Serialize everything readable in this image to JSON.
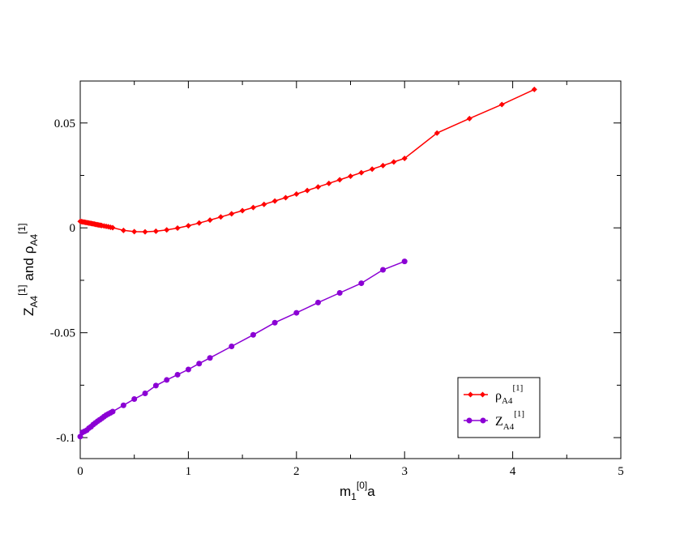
{
  "chart_data": {
    "type": "line",
    "xlabel": {
      "base": "m",
      "sub": "1",
      "sup": "[0]",
      "suffix": "a"
    },
    "ylabel": {
      "part1": {
        "base": "Z",
        "sub": "A4",
        "sup": "[1]"
      },
      "joiner": "and",
      "part2": {
        "base": "ρ",
        "sub": "A4",
        "sup": "[1]"
      }
    },
    "xlim": [
      0,
      5
    ],
    "ylim": [
      -0.11,
      0.07
    ],
    "xticks": [
      0,
      1,
      2,
      3,
      4,
      5
    ],
    "xtick_labels": [
      "0",
      "1",
      "2",
      "3",
      "4",
      "5"
    ],
    "yticks": [
      -0.1,
      -0.05,
      0,
      0.05
    ],
    "ytick_labels": [
      "-0.1",
      "-0.05",
      "0",
      "0.05"
    ],
    "grid": false,
    "legend_position": "bottom-right",
    "series": [
      {
        "legend": {
          "base": "ρ",
          "sub": "A4",
          "sup": "[1]"
        },
        "color": "#ff0000",
        "marker": "diamond",
        "x": [
          0.0,
          0.01,
          0.02,
          0.03,
          0.04,
          0.05,
          0.06,
          0.07,
          0.08,
          0.09,
          0.1,
          0.11,
          0.12,
          0.13,
          0.14,
          0.15,
          0.16,
          0.17,
          0.18,
          0.19,
          0.2,
          0.22,
          0.24,
          0.26,
          0.28,
          0.3,
          0.4,
          0.5,
          0.6,
          0.7,
          0.8,
          0.9,
          1.0,
          1.1,
          1.2,
          1.3,
          1.4,
          1.5,
          1.6,
          1.7,
          1.8,
          1.9,
          2.0,
          2.1,
          2.2,
          2.3,
          2.4,
          2.5,
          2.6,
          2.7,
          2.8,
          2.9,
          3.0,
          3.3,
          3.6,
          3.9,
          4.2
        ],
        "y": [
          0.0031,
          0.003,
          0.0029,
          0.0028,
          0.0027,
          0.0026,
          0.0025,
          0.0024,
          0.0023,
          0.0022,
          0.0021,
          0.002,
          0.0019,
          0.0018,
          0.0017,
          0.0016,
          0.0015,
          0.0014,
          0.0013,
          0.0012,
          0.0011,
          0.0009,
          0.0007,
          0.0005,
          0.0003,
          0.0001,
          -0.0012,
          -0.0018,
          -0.0019,
          -0.0016,
          -0.001,
          -0.0001,
          0.001,
          0.0023,
          0.0037,
          0.0052,
          0.0067,
          0.0082,
          0.0097,
          0.0112,
          0.0128,
          0.0144,
          0.0161,
          0.0178,
          0.0195,
          0.0212,
          0.0229,
          0.0246,
          0.0263,
          0.028,
          0.0297,
          0.0314,
          0.0331,
          0.0452,
          0.0521,
          0.0588,
          0.066
        ]
      },
      {
        "legend": {
          "base": "Z",
          "sub": "A4",
          "sup": "[1]"
        },
        "color": "#8b00d4",
        "marker": "circle",
        "x": [
          0.0,
          0.02,
          0.04,
          0.06,
          0.08,
          0.1,
          0.12,
          0.14,
          0.16,
          0.18,
          0.2,
          0.22,
          0.24,
          0.26,
          0.28,
          0.3,
          0.4,
          0.5,
          0.6,
          0.7,
          0.8,
          0.9,
          1.0,
          1.1,
          1.2,
          1.4,
          1.6,
          1.8,
          2.0,
          2.2,
          2.4,
          2.6,
          2.8,
          3.0
        ],
        "y": [
          -0.0995,
          -0.0975,
          -0.097,
          -0.0965,
          -0.0955,
          -0.0948,
          -0.0938,
          -0.093,
          -0.0922,
          -0.0915,
          -0.0908,
          -0.09,
          -0.0893,
          -0.0887,
          -0.0882,
          -0.0876,
          -0.0846,
          -0.0816,
          -0.0789,
          -0.0752,
          -0.0725,
          -0.07,
          -0.0675,
          -0.0647,
          -0.062,
          -0.0565,
          -0.051,
          -0.0452,
          -0.0405,
          -0.0356,
          -0.031,
          -0.0264,
          -0.02,
          -0.016
        ]
      }
    ]
  }
}
